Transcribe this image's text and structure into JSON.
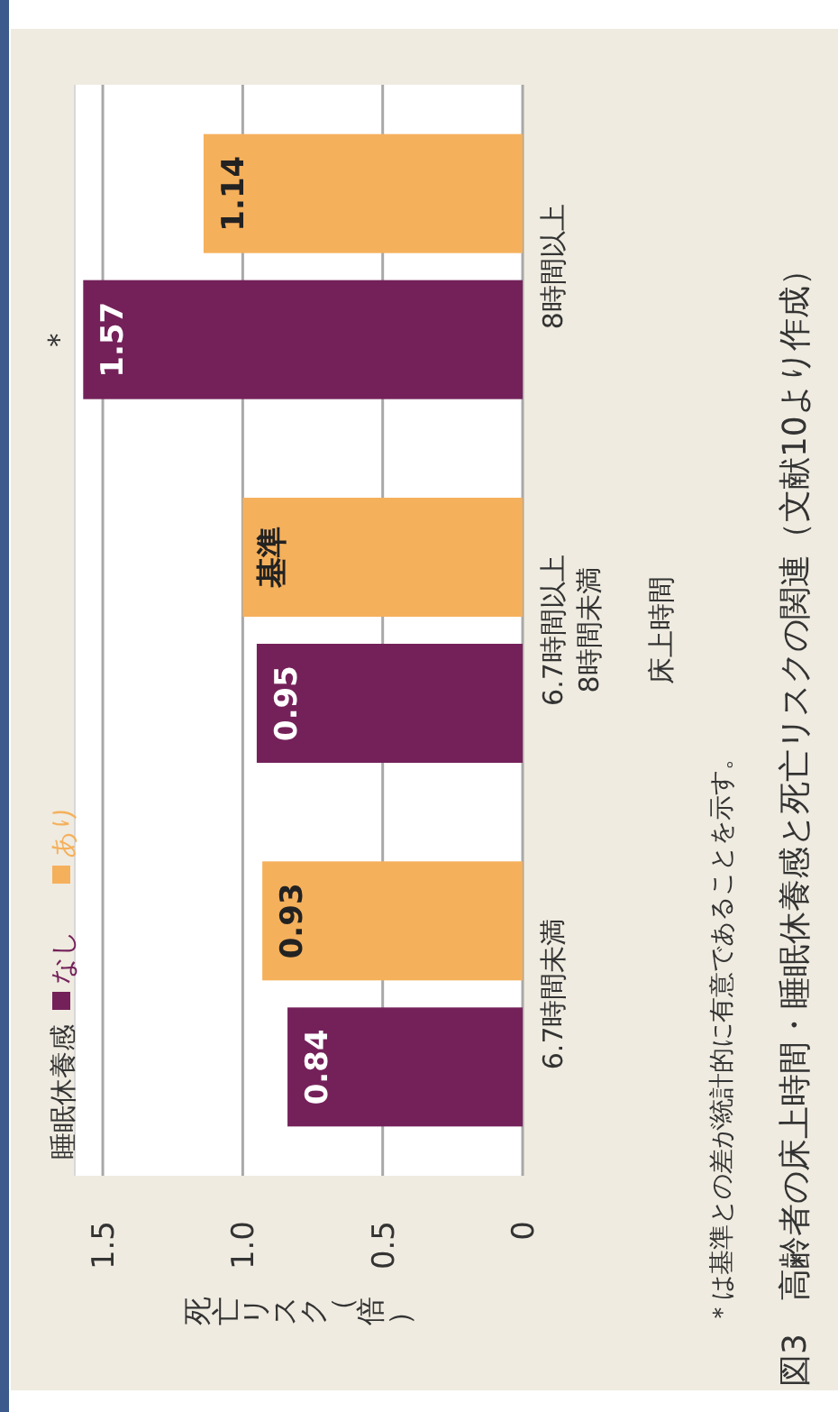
{
  "chart_data": {
    "type": "bar",
    "orientation": "horizontal",
    "title": "図3　高齢者の床上時間・睡眠休養感と死亡リスクの関連（文献10より作成）",
    "xlabel": "死亡リスク（倍）",
    "ylabel": "床上時間",
    "legend_title": "睡眠休養感",
    "categories": [
      "8時間以上",
      "6.7時間以上\n8時間未満",
      "6.7時間未満"
    ],
    "series": [
      {
        "name": "なし",
        "color": "#74215a",
        "values": [
          1.57,
          0.95,
          0.84
        ],
        "value_labels": [
          "1.57",
          "0.95",
          "0.84"
        ]
      },
      {
        "name": "あり",
        "color": "#f5b05c",
        "values": [
          1.14,
          1.0,
          0.93
        ],
        "value_labels": [
          "1.14",
          "基準",
          "0.93"
        ]
      }
    ],
    "xlim": [
      1.6,
      0
    ],
    "xticks": [
      0,
      0.5,
      {
        "value": 1,
        "label": "1.0"
      },
      1.5
    ],
    "grid": "x",
    "legend": "left",
    "annotations": [
      "＊",
      "＊は基準との差が統計的に有意であることを示す。"
    ]
  }
}
